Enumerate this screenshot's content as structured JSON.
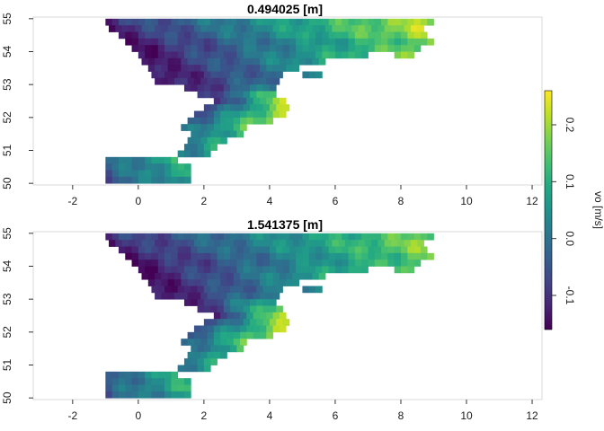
{
  "figure": {
    "colorbar": {
      "title": "vo [m/s]",
      "ticks": [
        0.2,
        0.1,
        0.0,
        -0.1
      ],
      "tick_labels": [
        "0.2",
        "0.1",
        "0.0",
        "-0.1"
      ],
      "range": [
        -0.16,
        0.26
      ],
      "palette": [
        "#440154",
        "#482475",
        "#414487",
        "#355f8d",
        "#2a788e",
        "#21918c",
        "#22a884",
        "#44bf70",
        "#7ad151",
        "#bddf26",
        "#fde725"
      ]
    }
  },
  "chart_data": [
    {
      "type": "heatmap",
      "title": "0.494025 [m]",
      "xlabel": "",
      "ylabel": "",
      "xlim": [
        -3.2,
        12.3
      ],
      "ylim": [
        49.95,
        55.05
      ],
      "x_ticks": [
        -2,
        0,
        2,
        4,
        6,
        8,
        10,
        12
      ],
      "x_tick_labels": [
        "-2",
        "0",
        "2",
        "4",
        "6",
        "8",
        "10",
        "12"
      ],
      "y_ticks": [
        50,
        51,
        52,
        53,
        54,
        55
      ],
      "y_tick_labels": [
        "50",
        "51",
        "52",
        "53",
        "54",
        "55"
      ],
      "grid": false,
      "value_field": "vo [m/s]",
      "rows": [
        {
          "lat": 54.9,
          "segments": [
            [
              -1.0,
              9.0,
              -0.1,
              0.21
            ]
          ]
        },
        {
          "lat": 54.7,
          "segments": [
            [
              -0.9,
              8.7,
              -0.12,
              0.21
            ]
          ]
        },
        {
          "lat": 54.5,
          "segments": [
            [
              -0.6,
              8.8,
              -0.12,
              0.2
            ]
          ]
        },
        {
          "lat": 54.3,
          "segments": [
            [
              -0.4,
              8.9,
              -0.13,
              0.17
            ]
          ]
        },
        {
          "lat": 54.1,
          "segments": [
            [
              -0.2,
              8.6,
              -0.14,
              0.17
            ]
          ]
        },
        {
          "lat": 53.9,
          "segments": [
            [
              0.0,
              7.0,
              -0.14,
              0.13
            ],
            [
              7.8,
              8.4,
              0.16,
              0.18
            ]
          ]
        },
        {
          "lat": 53.7,
          "segments": [
            [
              0.1,
              5.6,
              -0.14,
              0.08
            ]
          ]
        },
        {
          "lat": 53.5,
          "segments": [
            [
              0.3,
              4.8,
              -0.14,
              0.03
            ]
          ]
        },
        {
          "lat": 53.3,
          "segments": [
            [
              0.4,
              4.4,
              -0.15,
              0.0
            ],
            [
              5.0,
              5.6,
              0.02,
              0.04
            ]
          ]
        },
        {
          "lat": 53.1,
          "segments": [
            [
              0.5,
              4.3,
              -0.15,
              0.0
            ]
          ]
        },
        {
          "lat": 52.9,
          "segments": [
            [
              1.4,
              4.2,
              -0.13,
              0.03
            ]
          ]
        },
        {
          "lat": 52.7,
          "segments": [
            [
              1.8,
              4.2,
              -0.12,
              0.14
            ]
          ]
        },
        {
          "lat": 52.5,
          "segments": [
            [
              2.3,
              4.6,
              -0.1,
              0.2
            ]
          ]
        },
        {
          "lat": 52.3,
          "segments": [
            [
              2.0,
              4.6,
              -0.08,
              0.2
            ]
          ]
        },
        {
          "lat": 52.1,
          "segments": [
            [
              1.7,
              4.4,
              -0.06,
              0.21
            ]
          ]
        },
        {
          "lat": 51.9,
          "segments": [
            [
              1.5,
              4.1,
              -0.04,
              0.19
            ]
          ]
        },
        {
          "lat": 51.7,
          "segments": [
            [
              1.3,
              3.4,
              -0.02,
              0.14
            ]
          ]
        },
        {
          "lat": 51.5,
          "segments": [
            [
              1.6,
              3.2,
              -0.01,
              0.12
            ]
          ]
        },
        {
          "lat": 51.3,
          "segments": [
            [
              1.5,
              2.8,
              0.0,
              0.1
            ]
          ]
        },
        {
          "lat": 51.1,
          "segments": [
            [
              1.4,
              2.4,
              0.01,
              0.08
            ]
          ]
        },
        {
          "lat": 50.9,
          "segments": [
            [
              1.2,
              2.1,
              0.02,
              0.06
            ]
          ]
        },
        {
          "lat": 50.7,
          "segments": [
            [
              -1.0,
              1.3,
              -0.02,
              0.1
            ]
          ]
        },
        {
          "lat": 50.5,
          "segments": [
            [
              -1.0,
              1.5,
              -0.03,
              0.09
            ]
          ]
        },
        {
          "lat": 50.3,
          "segments": [
            [
              -1.0,
              1.6,
              -0.04,
              0.11
            ]
          ]
        },
        {
          "lat": 50.1,
          "segments": [
            [
              -1.0,
              1.5,
              -0.05,
              0.07
            ]
          ]
        }
      ]
    },
    {
      "type": "heatmap",
      "title": "1.541375 [m]",
      "xlabel": "",
      "ylabel": "",
      "xlim": [
        -3.2,
        12.3
      ],
      "ylim": [
        49.95,
        55.05
      ],
      "x_ticks": [
        -2,
        0,
        2,
        4,
        6,
        8,
        10,
        12
      ],
      "x_tick_labels": [
        "-2",
        "0",
        "2",
        "4",
        "6",
        "8",
        "10",
        "12"
      ],
      "y_ticks": [
        50,
        51,
        52,
        53,
        54,
        55
      ],
      "y_tick_labels": [
        "50",
        "51",
        "52",
        "53",
        "54",
        "55"
      ],
      "grid": false,
      "value_field": "vo [m/s]",
      "rows": [
        {
          "lat": 54.9,
          "segments": [
            [
              -1.0,
              8.9,
              -0.1,
              0.17
            ]
          ]
        },
        {
          "lat": 54.7,
          "segments": [
            [
              -0.9,
              8.7,
              -0.12,
              0.18
            ]
          ]
        },
        {
          "lat": 54.5,
          "segments": [
            [
              -0.6,
              8.8,
              -0.12,
              0.18
            ]
          ]
        },
        {
          "lat": 54.3,
          "segments": [
            [
              -0.4,
              8.9,
              -0.13,
              0.16
            ]
          ]
        },
        {
          "lat": 54.1,
          "segments": [
            [
              -0.2,
              8.6,
              -0.14,
              0.15
            ]
          ]
        },
        {
          "lat": 53.9,
          "segments": [
            [
              0.0,
              7.0,
              -0.14,
              0.12
            ],
            [
              7.8,
              8.4,
              0.14,
              0.16
            ]
          ]
        },
        {
          "lat": 53.7,
          "segments": [
            [
              0.1,
              5.6,
              -0.14,
              0.08
            ]
          ]
        },
        {
          "lat": 53.5,
          "segments": [
            [
              0.3,
              4.8,
              -0.14,
              0.04
            ]
          ]
        },
        {
          "lat": 53.3,
          "segments": [
            [
              0.4,
              4.4,
              -0.15,
              0.02
            ],
            [
              5.0,
              5.6,
              0.03,
              0.05
            ]
          ]
        },
        {
          "lat": 53.1,
          "segments": [
            [
              0.5,
              4.3,
              -0.15,
              0.03
            ]
          ]
        },
        {
          "lat": 52.9,
          "segments": [
            [
              1.4,
              4.3,
              -0.13,
              0.1
            ]
          ]
        },
        {
          "lat": 52.7,
          "segments": [
            [
              1.8,
              4.3,
              -0.12,
              0.17
            ]
          ]
        },
        {
          "lat": 52.5,
          "segments": [
            [
              2.3,
              4.6,
              -0.1,
              0.21
            ]
          ]
        },
        {
          "lat": 52.3,
          "segments": [
            [
              2.0,
              4.6,
              -0.08,
              0.21
            ]
          ]
        },
        {
          "lat": 52.1,
          "segments": [
            [
              1.7,
              4.4,
              -0.06,
              0.2
            ]
          ]
        },
        {
          "lat": 51.9,
          "segments": [
            [
              1.5,
              4.1,
              -0.04,
              0.19
            ]
          ]
        },
        {
          "lat": 51.7,
          "segments": [
            [
              1.3,
              3.4,
              -0.03,
              0.14
            ]
          ]
        },
        {
          "lat": 51.5,
          "segments": [
            [
              1.6,
              3.2,
              -0.02,
              0.12
            ]
          ]
        },
        {
          "lat": 51.3,
          "segments": [
            [
              1.5,
              2.8,
              -0.01,
              0.1
            ]
          ]
        },
        {
          "lat": 51.1,
          "segments": [
            [
              1.4,
              2.4,
              0.0,
              0.08
            ]
          ]
        },
        {
          "lat": 50.9,
          "segments": [
            [
              1.2,
              2.1,
              0.01,
              0.06
            ]
          ]
        },
        {
          "lat": 50.7,
          "segments": [
            [
              -1.0,
              1.3,
              -0.03,
              0.09
            ]
          ]
        },
        {
          "lat": 50.5,
          "segments": [
            [
              -1.0,
              1.5,
              -0.04,
              0.1
            ]
          ]
        },
        {
          "lat": 50.3,
          "segments": [
            [
              -1.0,
              1.6,
              -0.04,
              0.12
            ]
          ]
        },
        {
          "lat": 50.1,
          "segments": [
            [
              -1.0,
              1.5,
              -0.05,
              0.08
            ]
          ]
        }
      ]
    }
  ]
}
